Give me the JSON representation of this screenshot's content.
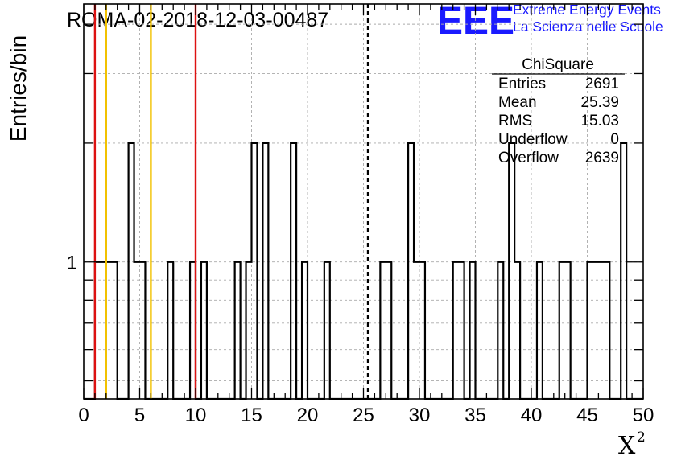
{
  "chart_data": {
    "type": "histogram",
    "title": "ROMA-02-2018-12-03-00487",
    "xlabel": "X",
    "xlabel_superscript": "2",
    "ylabel": "Entries/bin",
    "xlim": [
      0,
      50
    ],
    "ylim": [
      0.45,
      4.5
    ],
    "yscale": "log",
    "grid": true,
    "x_ticks": [
      "0",
      "5",
      "10",
      "15",
      "20",
      "25",
      "30",
      "35",
      "40",
      "45",
      "50"
    ],
    "y_tick_label": "1",
    "y_tick_value": 1,
    "bin_width": 0.5,
    "bin_start": 0,
    "bin_counts": [
      0,
      0,
      1,
      1,
      1,
      1,
      0,
      0,
      2,
      1,
      1,
      0,
      0,
      0,
      0,
      1,
      0,
      0,
      0,
      1,
      0,
      1,
      0,
      0,
      0,
      0,
      0,
      1,
      0,
      1,
      2,
      0,
      2,
      0,
      0,
      0,
      0,
      2,
      0,
      1,
      0,
      0,
      0,
      1,
      0,
      0,
      0,
      0,
      0,
      0,
      0,
      0,
      0,
      1,
      1,
      0,
      0,
      0,
      2,
      1,
      1,
      0,
      0,
      0,
      0,
      0,
      1,
      1,
      0,
      1,
      0,
      0,
      0,
      0,
      1,
      0,
      2,
      1,
      0,
      0,
      0,
      1,
      0,
      0,
      0,
      1,
      1,
      0,
      0,
      0,
      1,
      1,
      1,
      1,
      0,
      0,
      2,
      0,
      0,
      0
    ],
    "vertical_lines": [
      {
        "x": 1.0,
        "color": "#dd1111",
        "style": "solid"
      },
      {
        "x": 2.0,
        "color": "#f2c200",
        "style": "solid"
      },
      {
        "x": 6.0,
        "color": "#f2c200",
        "style": "solid"
      },
      {
        "x": 10.0,
        "color": "#dd1111",
        "style": "solid"
      },
      {
        "x": 25.39,
        "color": "#000000",
        "style": "dashed"
      }
    ],
    "stats_box": {
      "title": "ChiSquare",
      "rows": [
        {
          "label": "Entries",
          "value": "2691"
        },
        {
          "label": "Mean",
          "value": "25.39"
        },
        {
          "label": "RMS",
          "value": "15.03"
        },
        {
          "label": "Underflow",
          "value": "0"
        },
        {
          "label": "Overflow",
          "value": "2639"
        }
      ]
    }
  },
  "branding": {
    "logo_text": "EEE",
    "line1": "Extreme Energy Events",
    "line2": "La Scienza nelle Scuole",
    "color": "#1a1aff"
  }
}
